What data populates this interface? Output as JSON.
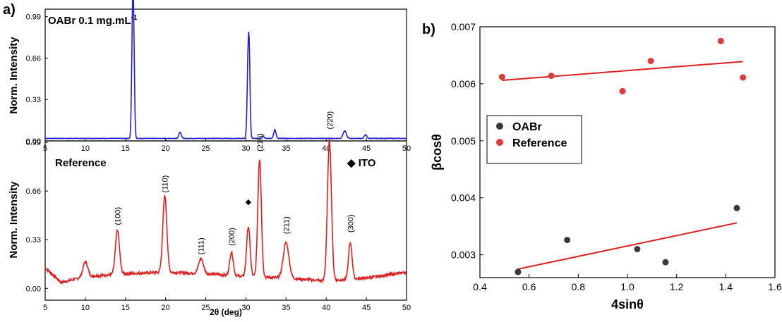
{
  "panel_a": {
    "letter": "a)",
    "top": {
      "annotation_prefix": "OABr 0.1 mg.mL",
      "annotation_superscript": "-1",
      "ylabel": "Norm. Intensity",
      "color": "#1f1fd6"
    },
    "bottom": {
      "annotation": "Reference",
      "legend_ito_symbol": "◆",
      "legend_ito_label": "ITO",
      "ylabel": "Norm. Intensity",
      "xlabel": "2θ (deg)",
      "color": "#e01e1e"
    }
  },
  "panel_b": {
    "letter": "b)",
    "xlabel": "4sinθ",
    "ylabel": "βcosθ",
    "legend": {
      "oabr": "OABr",
      "reference": "Reference",
      "oabr_color": "#3a3a3a",
      "reference_color": "#e03a3a"
    },
    "fit_color": "#e01e1e"
  },
  "chart_data": [
    {
      "type": "line",
      "panel": "a-top",
      "series_label": "OABr 0.1 mg.mL-1",
      "xlim": [
        5,
        50
      ],
      "ylim": [
        0,
        1.05
      ],
      "x_ticks": [
        5,
        10,
        15,
        20,
        25,
        30,
        35,
        40,
        45,
        50
      ],
      "y_ticks": [
        0.0,
        0.33,
        0.66,
        0.99
      ],
      "y_tick_labels": [
        "0.00",
        "0.33",
        "0.66",
        "0.99"
      ],
      "ylabel": "Norm. Intensity",
      "baseline": 0.02,
      "peaks": [
        {
          "x": 15.9,
          "y": 0.99,
          "w": 0.12
        },
        {
          "x": 16.05,
          "y": 0.45,
          "w": 0.1
        },
        {
          "x": 21.8,
          "y": 0.05,
          "w": 0.15
        },
        {
          "x": 30.3,
          "y": 0.72,
          "w": 0.13
        },
        {
          "x": 30.45,
          "y": 0.3,
          "w": 0.1
        },
        {
          "x": 32.1,
          "y": 0.02,
          "w": 0.15
        },
        {
          "x": 33.6,
          "y": 0.07,
          "w": 0.14
        },
        {
          "x": 42.3,
          "y": 0.06,
          "w": 0.2
        },
        {
          "x": 44.9,
          "y": 0.03,
          "w": 0.15
        }
      ]
    },
    {
      "type": "line",
      "panel": "a-bottom",
      "series_label": "Reference",
      "xlim": [
        5,
        50
      ],
      "ylim": [
        -0.08,
        1.0
      ],
      "x_ticks": [
        5,
        10,
        15,
        20,
        25,
        30,
        35,
        40,
        45,
        50
      ],
      "y_ticks": [
        0.0,
        0.33,
        0.66,
        0.99
      ],
      "y_tick_labels": [
        "0.00",
        "0.33",
        "0.66",
        "0.99"
      ],
      "xlabel": "2θ (deg)",
      "ylabel": "Norm. Intensity",
      "background": [
        [
          5,
          0.14
        ],
        [
          7,
          0.04
        ],
        [
          10,
          0.08
        ],
        [
          15,
          0.1
        ],
        [
          20,
          0.11
        ],
        [
          25,
          0.1
        ],
        [
          30,
          0.08
        ],
        [
          35,
          0.07
        ],
        [
          40,
          0.05
        ],
        [
          45,
          0.07
        ],
        [
          50,
          0.11
        ]
      ],
      "peaks": [
        {
          "x": 10.0,
          "y": 0.1,
          "w": 0.3
        },
        {
          "x": 14.0,
          "y": 0.3,
          "w": 0.25
        },
        {
          "x": 19.9,
          "y": 0.52,
          "w": 0.25
        },
        {
          "x": 24.4,
          "y": 0.1,
          "w": 0.3
        },
        {
          "x": 28.2,
          "y": 0.16,
          "w": 0.22
        },
        {
          "x": 30.3,
          "y": 0.34,
          "w": 0.22
        },
        {
          "x": 31.7,
          "y": 0.8,
          "w": 0.22
        },
        {
          "x": 35.0,
          "y": 0.24,
          "w": 0.35
        },
        {
          "x": 40.4,
          "y": 0.95,
          "w": 0.25
        },
        {
          "x": 43.0,
          "y": 0.25,
          "w": 0.22
        }
      ],
      "peak_labels": [
        {
          "x": 14.0,
          "text": "(100)"
        },
        {
          "x": 19.9,
          "text": "(110)"
        },
        {
          "x": 24.4,
          "text": "(111)"
        },
        {
          "x": 28.2,
          "text": "(200)"
        },
        {
          "x": 31.7,
          "text": "(210)"
        },
        {
          "x": 35.0,
          "text": "(211)"
        },
        {
          "x": 40.4,
          "text": "(220)"
        },
        {
          "x": 43.0,
          "text": "(300)"
        }
      ],
      "ito_marker": {
        "x": 30.3,
        "symbol": "◆"
      }
    },
    {
      "type": "scatter",
      "panel": "b",
      "xlabel": "4sinθ",
      "ylabel": "βcosθ",
      "xlim": [
        0.4,
        1.6
      ],
      "ylim": [
        0.0026,
        0.007
      ],
      "x_ticks": [
        0.4,
        0.6,
        0.8,
        1.0,
        1.2,
        1.4,
        1.6
      ],
      "y_ticks": [
        0.003,
        0.004,
        0.005,
        0.006,
        0.007
      ],
      "legend_position": "left",
      "series": [
        {
          "name": "OABr",
          "color": "#3a3a3a",
          "x": [
            0.555,
            0.755,
            1.04,
            1.155,
            1.445
          ],
          "y": [
            0.0027,
            0.00326,
            0.0031,
            0.00287,
            0.00382
          ],
          "fit": {
            "x": [
              0.555,
              1.445
            ],
            "y": [
              0.00275,
              0.00356
            ]
          }
        },
        {
          "name": "Reference",
          "color": "#e03a3a",
          "x": [
            0.49,
            0.69,
            0.98,
            1.095,
            1.38,
            1.47
          ],
          "y": [
            0.00612,
            0.00614,
            0.00587,
            0.0064,
            0.00675,
            0.00611
          ],
          "fit": {
            "x": [
              0.49,
              1.47
            ],
            "y": [
              0.00606,
              0.00639
            ]
          }
        }
      ]
    }
  ]
}
